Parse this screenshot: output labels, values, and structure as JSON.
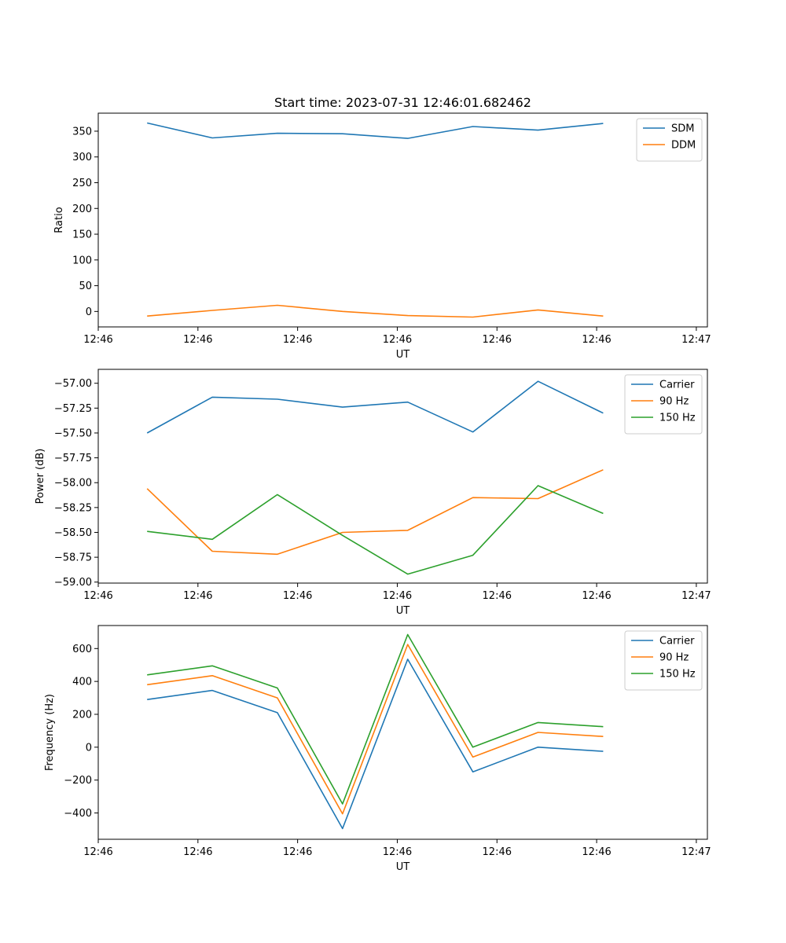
{
  "figure_title": "Start time: 2023-07-31 12:46:01.682462",
  "chart_data": [
    {
      "type": "line",
      "title": "Start time: 2023-07-31 12:46:01.682462",
      "xlabel": "UT",
      "ylabel": "Ratio",
      "x": [
        0,
        1,
        2,
        3,
        4,
        5,
        6,
        7
      ],
      "xlim": [
        -0.75,
        8.6
      ],
      "xticks": [
        -0.75,
        0.78,
        2.31,
        3.84,
        5.37,
        6.9,
        8.43
      ],
      "xtick_labels": [
        "12:46",
        "12:46",
        "12:46",
        "12:46",
        "12:46",
        "12:46",
        "12:47"
      ],
      "ylim": [
        -30,
        385
      ],
      "yticks": [
        0,
        50,
        100,
        150,
        200,
        250,
        300,
        350
      ],
      "ytick_labels": [
        "0",
        "50",
        "100",
        "150",
        "200",
        "250",
        "300",
        "350"
      ],
      "legend_position": "top-right",
      "series": [
        {
          "name": "SDM",
          "color": "#1f77b4",
          "values": [
            366,
            337,
            346,
            345,
            336,
            359,
            352,
            365
          ]
        },
        {
          "name": "DDM",
          "color": "#ff7f0e",
          "values": [
            -9,
            2,
            12,
            0,
            -8,
            -11,
            3,
            -9
          ]
        }
      ]
    },
    {
      "type": "line",
      "title": "",
      "xlabel": "UT",
      "ylabel": "Power (dB)",
      "x": [
        0,
        1,
        2,
        3,
        4,
        5,
        6,
        7
      ],
      "xlim": [
        -0.75,
        8.6
      ],
      "xticks": [
        -0.75,
        0.78,
        2.31,
        3.84,
        5.37,
        6.9,
        8.43
      ],
      "xtick_labels": [
        "12:46",
        "12:46",
        "12:46",
        "12:46",
        "12:46",
        "12:46",
        "12:47"
      ],
      "ylim": [
        -59.01,
        -56.86
      ],
      "yticks": [
        -59.0,
        -58.75,
        -58.5,
        -58.25,
        -58.0,
        -57.75,
        -57.5,
        -57.25,
        -57.0
      ],
      "ytick_labels": [
        "−59.00",
        "−58.75",
        "−58.50",
        "−58.25",
        "−58.00",
        "−57.75",
        "−57.50",
        "−57.25",
        "−57.00"
      ],
      "legend_position": "top-right",
      "series": [
        {
          "name": "Carrier",
          "color": "#1f77b4",
          "values": [
            -57.5,
            -57.14,
            -57.16,
            -57.24,
            -57.19,
            -57.49,
            -56.98,
            -57.3
          ]
        },
        {
          "name": "90 Hz",
          "color": "#ff7f0e",
          "values": [
            -58.06,
            -58.69,
            -58.72,
            -58.5,
            -58.48,
            -58.15,
            -58.16,
            -57.87
          ]
        },
        {
          "name": "150 Hz",
          "color": "#2ca02c",
          "values": [
            -58.49,
            -58.57,
            -58.12,
            -58.53,
            -58.92,
            -58.73,
            -58.03,
            -58.31
          ]
        }
      ]
    },
    {
      "type": "line",
      "title": "",
      "xlabel": "UT",
      "ylabel": "Frequency (Hz)",
      "x": [
        0,
        1,
        2,
        3,
        4,
        5,
        6,
        7
      ],
      "xlim": [
        -0.75,
        8.6
      ],
      "xticks": [
        -0.75,
        0.78,
        2.31,
        3.84,
        5.37,
        6.9,
        8.43
      ],
      "xtick_labels": [
        "12:46",
        "12:46",
        "12:46",
        "12:46",
        "12:46",
        "12:46",
        "12:47"
      ],
      "ylim": [
        -560,
        740
      ],
      "yticks": [
        -400,
        -200,
        0,
        200,
        400,
        600
      ],
      "ytick_labels": [
        "−400",
        "−200",
        "0",
        "200",
        "400",
        "600"
      ],
      "legend_position": "top-right",
      "series": [
        {
          "name": "Carrier",
          "color": "#1f77b4",
          "values": [
            290,
            345,
            210,
            -495,
            535,
            -150,
            0,
            -25
          ]
        },
        {
          "name": "90 Hz",
          "color": "#ff7f0e",
          "values": [
            380,
            435,
            300,
            -405,
            625,
            -60,
            90,
            65
          ]
        },
        {
          "name": "150 Hz",
          "color": "#2ca02c",
          "values": [
            440,
            495,
            360,
            -345,
            685,
            0,
            150,
            125
          ]
        }
      ]
    }
  ]
}
